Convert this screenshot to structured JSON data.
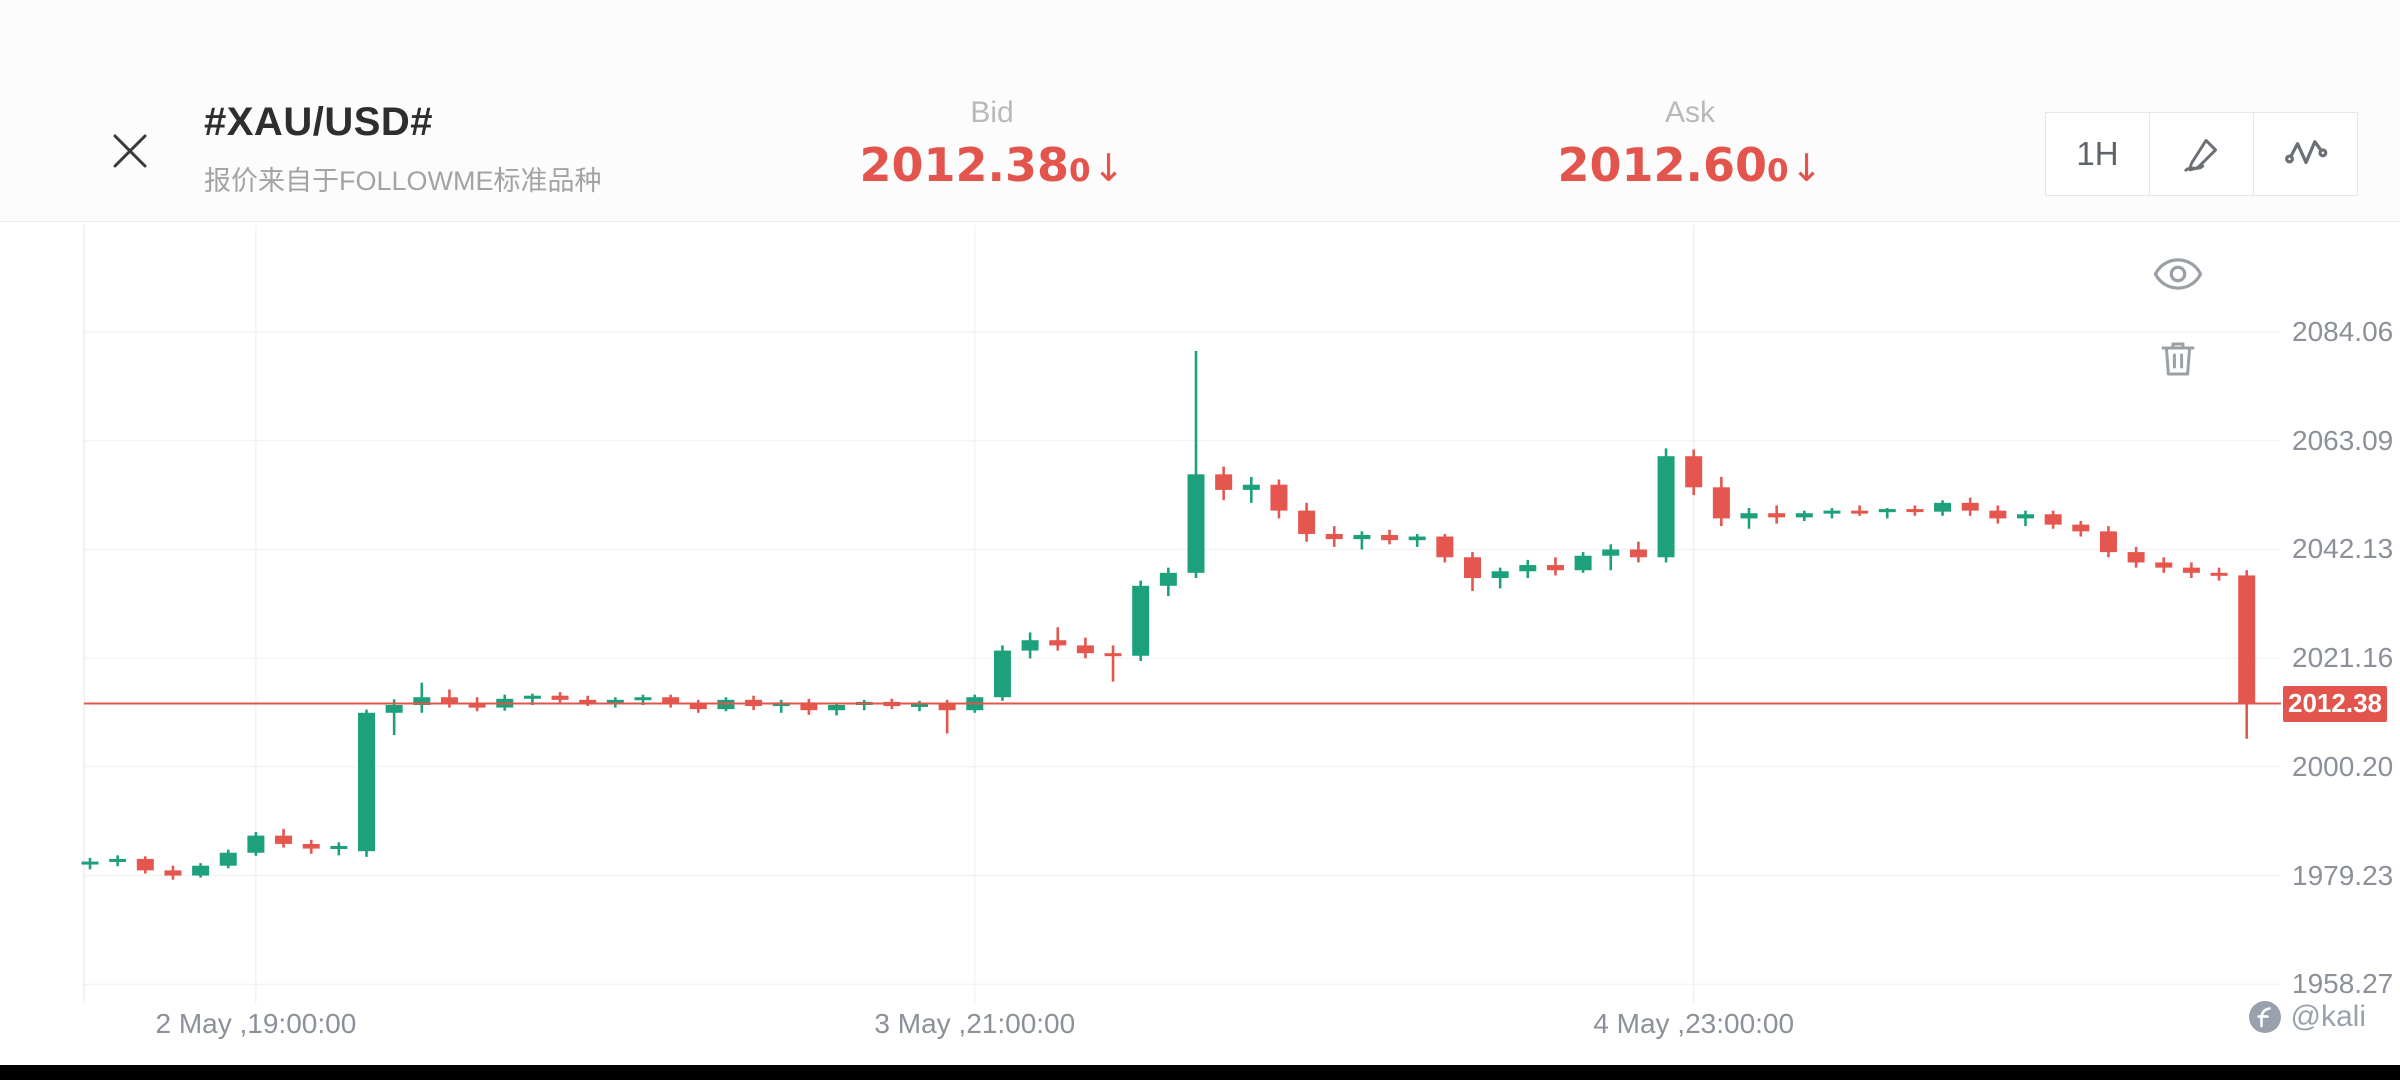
{
  "header": {
    "title": "#XAU/USD#",
    "subtitle": "报价来自于FOLLOWME标准品种",
    "bid": {
      "label": "Bid",
      "value": "2012.38",
      "pip": "0",
      "arrow": "↓"
    },
    "ask": {
      "label": "Ask",
      "value": "2012.60",
      "pip": "0",
      "arrow": "↓"
    },
    "timeframe_button": "1H"
  },
  "colors": {
    "up": "#1ca17c",
    "down": "#e4564e",
    "accent_red": "#e2544c",
    "axis_text": "#8b9099",
    "grid": "#efefef"
  },
  "icons": {
    "header": [
      "close-icon",
      "pen-icon",
      "indicator-icon"
    ],
    "chart": [
      "eye-icon",
      "trash-icon"
    ],
    "watermark": [
      "followme-logo-icon"
    ]
  },
  "chart_data": {
    "type": "candlestick",
    "symbol": "XAU/USD",
    "timeframe": "1H",
    "y_axis": {
      "labels": [
        "2084.06",
        "2063.09",
        "2042.13",
        "2021.16",
        "2000.20",
        "1979.23",
        "1958.27"
      ]
    },
    "x_axis": {
      "labels": [
        {
          "index": 6,
          "text": "2 May ,19:00:00"
        },
        {
          "index": 32,
          "text": "3 May ,21:00:00"
        },
        {
          "index": 58,
          "text": "4 May ,23:00:00"
        }
      ]
    },
    "current_price": {
      "value": 2012.38,
      "label": "2012.38"
    },
    "candles": [
      [
        1981.5,
        1982.6,
        1980.4,
        1981.9
      ],
      [
        1981.9,
        1983.1,
        1981.0,
        1982.4
      ],
      [
        1982.4,
        1982.9,
        1979.6,
        1980.2
      ],
      [
        1980.2,
        1981.1,
        1978.4,
        1979.2
      ],
      [
        1979.2,
        1981.6,
        1978.8,
        1981.1
      ],
      [
        1981.1,
        1984.2,
        1980.6,
        1983.6
      ],
      [
        1983.6,
        1987.6,
        1983.0,
        1986.9
      ],
      [
        1986.9,
        1988.2,
        1984.6,
        1985.3
      ],
      [
        1985.3,
        1986.1,
        1983.4,
        1984.4
      ],
      [
        1984.4,
        1985.6,
        1983.1,
        1984.9
      ],
      [
        1983.9,
        2011.2,
        1982.8,
        2010.6
      ],
      [
        2010.6,
        2013.2,
        2006.3,
        2012.1
      ],
      [
        2012.1,
        2016.4,
        2010.6,
        2013.6
      ],
      [
        2013.6,
        2015.1,
        2011.6,
        2012.4
      ],
      [
        2012.4,
        2013.6,
        2010.9,
        2011.6
      ],
      [
        2011.6,
        2014.1,
        2011.0,
        2013.3
      ],
      [
        2013.3,
        2014.3,
        2012.1,
        2013.9
      ],
      [
        2013.9,
        2014.6,
        2012.6,
        2013.1
      ],
      [
        2013.1,
        2013.9,
        2011.9,
        2012.6
      ],
      [
        2012.6,
        2013.6,
        2011.6,
        2013.1
      ],
      [
        2013.1,
        2014.1,
        2012.1,
        2013.6
      ],
      [
        2013.6,
        2014.1,
        2011.6,
        2012.3
      ],
      [
        2012.3,
        2013.1,
        2010.6,
        2011.3
      ],
      [
        2011.3,
        2013.6,
        2010.9,
        2013.1
      ],
      [
        2013.1,
        2013.9,
        2011.1,
        2011.9
      ],
      [
        2011.9,
        2013.1,
        2010.6,
        2012.6
      ],
      [
        2012.6,
        2013.3,
        2010.2,
        2011.1
      ],
      [
        2011.1,
        2012.6,
        2010.1,
        2012.1
      ],
      [
        2012.1,
        2013.1,
        2011.1,
        2012.7
      ],
      [
        2012.7,
        2013.3,
        2011.3,
        2011.9
      ],
      [
        2011.9,
        2012.9,
        2010.9,
        2012.3
      ],
      [
        2012.3,
        2013.1,
        2006.6,
        2011.1
      ],
      [
        2011.1,
        2014.1,
        2010.6,
        2013.6
      ],
      [
        2013.6,
        2023.6,
        2012.9,
        2022.6
      ],
      [
        2022.6,
        2026.1,
        2021.1,
        2024.6
      ],
      [
        2024.6,
        2027.1,
        2022.6,
        2023.6
      ],
      [
        2023.6,
        2025.1,
        2021.1,
        2022.1
      ],
      [
        2022.1,
        2023.6,
        2016.6,
        2021.6
      ],
      [
        2021.6,
        2036.1,
        2020.6,
        2035.1
      ],
      [
        2035.1,
        2038.6,
        2033.1,
        2037.6
      ],
      [
        2037.6,
        2080.4,
        2036.6,
        2056.6
      ],
      [
        2056.6,
        2058.1,
        2051.6,
        2053.6
      ],
      [
        2053.6,
        2056.1,
        2051.1,
        2054.6
      ],
      [
        2054.6,
        2055.6,
        2048.1,
        2049.6
      ],
      [
        2049.6,
        2051.1,
        2043.6,
        2045.1
      ],
      [
        2045.1,
        2046.6,
        2042.6,
        2044.1
      ],
      [
        2044.1,
        2045.6,
        2042.1,
        2044.9
      ],
      [
        2044.9,
        2045.9,
        2043.1,
        2043.9
      ],
      [
        2043.9,
        2045.1,
        2042.6,
        2044.6
      ],
      [
        2044.6,
        2045.1,
        2039.6,
        2040.6
      ],
      [
        2040.6,
        2041.6,
        2034.1,
        2036.6
      ],
      [
        2036.6,
        2038.6,
        2034.6,
        2037.9
      ],
      [
        2037.9,
        2040.1,
        2036.6,
        2039.1
      ],
      [
        2039.1,
        2040.6,
        2037.1,
        2038.1
      ],
      [
        2038.1,
        2041.6,
        2037.6,
        2040.9
      ],
      [
        2040.9,
        2043.1,
        2038.1,
        2042.1
      ],
      [
        2042.1,
        2043.6,
        2039.6,
        2040.6
      ],
      [
        2040.6,
        2061.6,
        2039.6,
        2060.1
      ],
      [
        2060.1,
        2061.4,
        2052.6,
        2054.1
      ],
      [
        2054.1,
        2056.1,
        2046.6,
        2048.1
      ],
      [
        2048.1,
        2050.1,
        2046.1,
        2049.1
      ],
      [
        2049.1,
        2050.6,
        2047.1,
        2048.3
      ],
      [
        2048.3,
        2049.6,
        2047.6,
        2049.1
      ],
      [
        2049.1,
        2050.1,
        2048.1,
        2049.6
      ],
      [
        2049.6,
        2050.6,
        2048.6,
        2049.3
      ],
      [
        2049.3,
        2050.1,
        2048.1,
        2049.9
      ],
      [
        2049.9,
        2050.6,
        2048.6,
        2049.4
      ],
      [
        2049.4,
        2051.6,
        2048.6,
        2051.1
      ],
      [
        2051.1,
        2052.1,
        2048.6,
        2049.6
      ],
      [
        2049.6,
        2050.6,
        2047.1,
        2048.1
      ],
      [
        2048.1,
        2049.6,
        2046.6,
        2048.9
      ],
      [
        2048.9,
        2049.6,
        2046.1,
        2046.9
      ],
      [
        2046.9,
        2047.6,
        2044.6,
        2045.6
      ],
      [
        2045.6,
        2046.6,
        2040.6,
        2041.6
      ],
      [
        2041.6,
        2042.6,
        2038.6,
        2039.6
      ],
      [
        2039.6,
        2040.6,
        2037.6,
        2038.6
      ],
      [
        2038.6,
        2039.6,
        2036.6,
        2037.6
      ],
      [
        2037.6,
        2038.6,
        2036.1,
        2037.1
      ],
      [
        2037.1,
        2038.1,
        2005.6,
        2012.4
      ]
    ]
  },
  "watermark": {
    "handle": "@kali"
  }
}
